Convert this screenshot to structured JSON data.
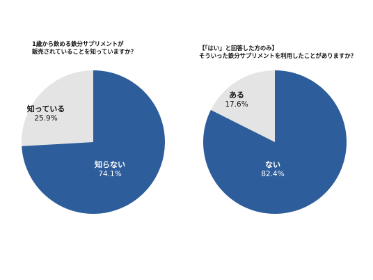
{
  "colors": {
    "primary": "#2d5d9a",
    "secondary": "#e4e4e4",
    "label_on_primary": "#ffffff",
    "label_on_secondary": "#111111"
  },
  "chart_data": [
    {
      "type": "pie",
      "title": [
        "1歳から飲める鉄分サプリメントが",
        "販売されていることを知っていますか？"
      ],
      "slices": [
        {
          "label": "知っている",
          "percent_label": "25.9%",
          "value": 25.9
        },
        {
          "label": "知らない",
          "percent_label": "74.1%",
          "value": 74.1
        }
      ],
      "start": "12 o'clock",
      "direction": "counterclockwise"
    },
    {
      "type": "pie",
      "title": [
        "【「はい」と回答した方のみ】",
        "そういった鉄分サプリメントを利用したことがありますか？"
      ],
      "slices": [
        {
          "label": "ある",
          "percent_label": "17.6%",
          "value": 17.6
        },
        {
          "label": "ない",
          "percent_label": "82.4%",
          "value": 82.4
        }
      ],
      "start": "12 o'clock",
      "direction": "counterclockwise"
    }
  ]
}
